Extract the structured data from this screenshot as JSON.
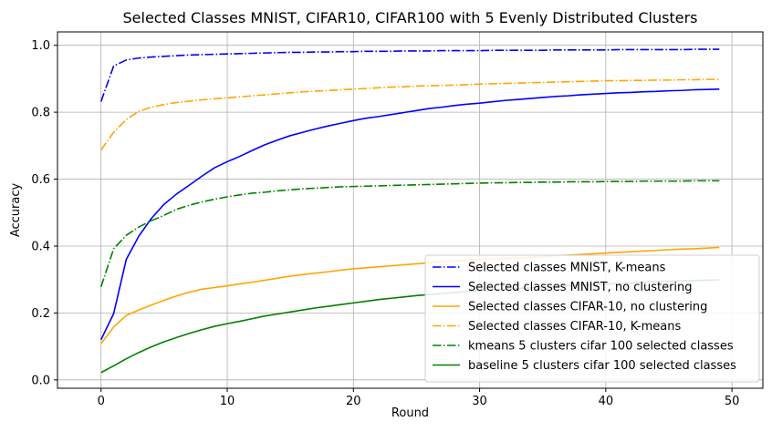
{
  "chart_data": {
    "type": "line",
    "title": "Selected Classes MNIST, CIFAR10, CIFAR100 with 5 Evenly Distributed Clusters",
    "xlabel": "Round",
    "ylabel": "Accuracy",
    "xlim": [
      -3.45,
      52.45
    ],
    "ylim": [
      -0.025,
      1.04
    ],
    "xticks": [
      0,
      10,
      20,
      30,
      40,
      50
    ],
    "xtick_labels": [
      "0",
      "10",
      "20",
      "30",
      "40",
      "50"
    ],
    "yticks": [
      0.0,
      0.2,
      0.4,
      0.6,
      0.8,
      1.0
    ],
    "ytick_labels": [
      "0.0",
      "0.2",
      "0.4",
      "0.6",
      "0.8",
      "1.0"
    ],
    "grid": true,
    "legend_position": "lower-right",
    "x": [
      0,
      1,
      2,
      3,
      4,
      5,
      6,
      7,
      8,
      9,
      10,
      11,
      12,
      13,
      14,
      15,
      16,
      17,
      18,
      19,
      20,
      21,
      22,
      23,
      24,
      25,
      26,
      27,
      28,
      29,
      30,
      31,
      32,
      33,
      34,
      35,
      36,
      37,
      38,
      39,
      40,
      41,
      42,
      43,
      44,
      45,
      46,
      47,
      48,
      49
    ],
    "series": [
      {
        "name": "Selected classes MNIST, K-means",
        "color": "#0000ff",
        "style": "dashdot",
        "values": [
          0.832,
          0.938,
          0.956,
          0.962,
          0.965,
          0.967,
          0.969,
          0.971,
          0.972,
          0.973,
          0.974,
          0.975,
          0.976,
          0.977,
          0.978,
          0.979,
          0.979,
          0.98,
          0.98,
          0.981,
          0.981,
          0.982,
          0.982,
          0.982,
          0.983,
          0.983,
          0.983,
          0.984,
          0.984,
          0.984,
          0.984,
          0.985,
          0.985,
          0.985,
          0.985,
          0.985,
          0.986,
          0.986,
          0.986,
          0.986,
          0.986,
          0.987,
          0.987,
          0.987,
          0.987,
          0.987,
          0.987,
          0.988,
          0.988,
          0.988
        ]
      },
      {
        "name": "Selected classes MNIST, no clustering",
        "color": "#0000ff",
        "style": "solid",
        "values": [
          0.12,
          0.198,
          0.36,
          0.43,
          0.483,
          0.525,
          0.556,
          0.582,
          0.609,
          0.634,
          0.652,
          0.668,
          0.686,
          0.703,
          0.717,
          0.73,
          0.74,
          0.75,
          0.759,
          0.767,
          0.775,
          0.782,
          0.787,
          0.793,
          0.799,
          0.805,
          0.811,
          0.815,
          0.82,
          0.824,
          0.827,
          0.831,
          0.835,
          0.838,
          0.841,
          0.844,
          0.847,
          0.849,
          0.852,
          0.854,
          0.856,
          0.858,
          0.859,
          0.861,
          0.862,
          0.864,
          0.865,
          0.867,
          0.868,
          0.869
        ]
      },
      {
        "name": "Selected classes CIFAR-10, no clustering",
        "color": "#ffa500",
        "style": "solid",
        "values": [
          0.108,
          0.158,
          0.193,
          0.209,
          0.224,
          0.238,
          0.251,
          0.262,
          0.271,
          0.276,
          0.281,
          0.287,
          0.292,
          0.298,
          0.304,
          0.31,
          0.315,
          0.319,
          0.323,
          0.328,
          0.332,
          0.335,
          0.338,
          0.341,
          0.344,
          0.347,
          0.35,
          0.353,
          0.355,
          0.358,
          0.36,
          0.362,
          0.363,
          0.364,
          0.366,
          0.368,
          0.371,
          0.373,
          0.375,
          0.377,
          0.379,
          0.381,
          0.383,
          0.385,
          0.387,
          0.389,
          0.391,
          0.392,
          0.394,
          0.396
        ]
      },
      {
        "name": "Selected classes CIFAR-10, K-means",
        "color": "#ffa500",
        "style": "dashdot",
        "values": [
          0.687,
          0.74,
          0.778,
          0.803,
          0.815,
          0.823,
          0.829,
          0.833,
          0.837,
          0.84,
          0.843,
          0.846,
          0.849,
          0.852,
          0.855,
          0.858,
          0.861,
          0.863,
          0.865,
          0.867,
          0.869,
          0.871,
          0.873,
          0.875,
          0.876,
          0.878,
          0.879,
          0.88,
          0.881,
          0.882,
          0.884,
          0.885,
          0.886,
          0.887,
          0.888,
          0.889,
          0.89,
          0.891,
          0.892,
          0.893,
          0.894,
          0.894,
          0.895,
          0.895,
          0.896,
          0.896,
          0.897,
          0.897,
          0.898,
          0.898
        ]
      },
      {
        "name": "kmeans 5 clusters cifar 100 selected classes",
        "color": "#008000",
        "style": "dashdot",
        "values": [
          0.278,
          0.392,
          0.432,
          0.457,
          0.476,
          0.492,
          0.51,
          0.522,
          0.532,
          0.54,
          0.547,
          0.553,
          0.558,
          0.561,
          0.565,
          0.568,
          0.571,
          0.573,
          0.575,
          0.577,
          0.578,
          0.579,
          0.58,
          0.581,
          0.582,
          0.583,
          0.584,
          0.585,
          0.586,
          0.587,
          0.588,
          0.589,
          0.589,
          0.59,
          0.59,
          0.591,
          0.591,
          0.592,
          0.592,
          0.592,
          0.593,
          0.593,
          0.593,
          0.594,
          0.594,
          0.594,
          0.594,
          0.595,
          0.595,
          0.595
        ]
      },
      {
        "name": "baseline 5 clusters cifar 100 selected classes",
        "color": "#008000",
        "style": "solid",
        "values": [
          0.022,
          0.042,
          0.063,
          0.082,
          0.099,
          0.114,
          0.127,
          0.139,
          0.15,
          0.16,
          0.168,
          0.175,
          0.183,
          0.191,
          0.197,
          0.203,
          0.209,
          0.215,
          0.22,
          0.225,
          0.23,
          0.235,
          0.24,
          0.244,
          0.248,
          0.252,
          0.255,
          0.258,
          0.261,
          0.264,
          0.266,
          0.269,
          0.271,
          0.273,
          0.275,
          0.277,
          0.279,
          0.281,
          0.283,
          0.284,
          0.286,
          0.288,
          0.29,
          0.292,
          0.294,
          0.295,
          0.296,
          0.297,
          0.298,
          0.299
        ]
      }
    ]
  }
}
